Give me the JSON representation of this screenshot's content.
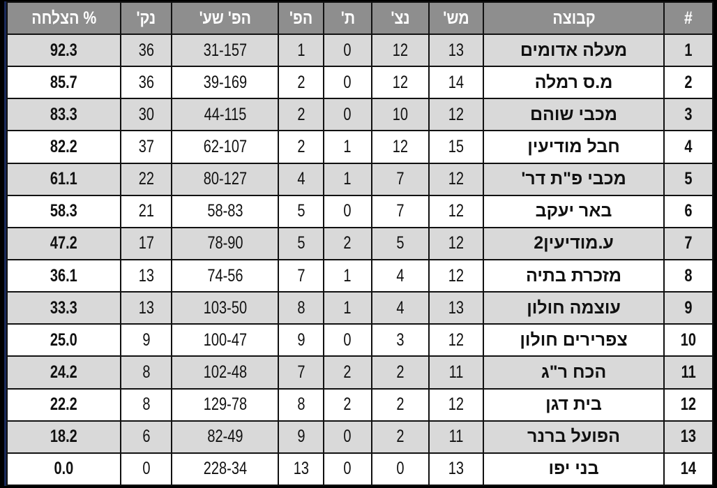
{
  "headers": {
    "rank": "#",
    "team": "קבוצה",
    "played": "מש'",
    "won": "נצ'",
    "drawn": "ת'",
    "lost": "הפ'",
    "goals": "הפ' שע'",
    "points": "נק'",
    "pct": "% הצלחה"
  },
  "rows": [
    {
      "rank": "1",
      "team": "מעלה אדומים",
      "played": "13",
      "won": "12",
      "drawn": "0",
      "lost": "1",
      "goals": "31-157",
      "points": "36",
      "pct": "92.3"
    },
    {
      "rank": "2",
      "team": "מ.ס רמלה",
      "played": "14",
      "won": "12",
      "drawn": "0",
      "lost": "2",
      "goals": "39-169",
      "points": "36",
      "pct": "85.7"
    },
    {
      "rank": "3",
      "team": "מכבי שוהם",
      "played": "12",
      "won": "10",
      "drawn": "0",
      "lost": "2",
      "goals": "44-115",
      "points": "30",
      "pct": "83.3"
    },
    {
      "rank": "4",
      "team": "חבל מודיעין",
      "played": "15",
      "won": "12",
      "drawn": "1",
      "lost": "2",
      "goals": "62-107",
      "points": "37",
      "pct": "82.2"
    },
    {
      "rank": "5",
      "team": "מכבי פ\"ת דר'",
      "played": "12",
      "won": "7",
      "drawn": "1",
      "lost": "4",
      "goals": "80-127",
      "points": "22",
      "pct": "61.1"
    },
    {
      "rank": "6",
      "team": "באר יעקב",
      "played": "12",
      "won": "7",
      "drawn": "0",
      "lost": "5",
      "goals": "58-83",
      "points": "21",
      "pct": "58.3"
    },
    {
      "rank": "7",
      "team": "ע.מודיעין2",
      "played": "12",
      "won": "5",
      "drawn": "2",
      "lost": "5",
      "goals": "78-90",
      "points": "17",
      "pct": "47.2"
    },
    {
      "rank": "8",
      "team": "מזכרת בתיה",
      "played": "12",
      "won": "4",
      "drawn": "1",
      "lost": "7",
      "goals": "74-56",
      "points": "13",
      "pct": "36.1"
    },
    {
      "rank": "9",
      "team": "עוצמה חולון",
      "played": "13",
      "won": "4",
      "drawn": "1",
      "lost": "8",
      "goals": "103-50",
      "points": "13",
      "pct": "33.3"
    },
    {
      "rank": "10",
      "team": "צפרירים חולון",
      "played": "12",
      "won": "3",
      "drawn": "0",
      "lost": "9",
      "goals": "100-47",
      "points": "9",
      "pct": "25.0"
    },
    {
      "rank": "11",
      "team": "הכח ר\"ג",
      "played": "11",
      "won": "2",
      "drawn": "2",
      "lost": "7",
      "goals": "102-48",
      "points": "8",
      "pct": "24.2"
    },
    {
      "rank": "12",
      "team": "בית דגן",
      "played": "12",
      "won": "2",
      "drawn": "2",
      "lost": "8",
      "goals": "129-78",
      "points": "8",
      "pct": "22.2"
    },
    {
      "rank": "13",
      "team": "הפועל ברנר",
      "played": "11",
      "won": "2",
      "drawn": "0",
      "lost": "9",
      "goals": "82-49",
      "points": "6",
      "pct": "18.2"
    },
    {
      "rank": "14",
      "team": "בני יפו",
      "played": "13",
      "won": "0",
      "drawn": "0",
      "lost": "13",
      "goals": "228-34",
      "points": "0",
      "pct": "0.0"
    }
  ]
}
